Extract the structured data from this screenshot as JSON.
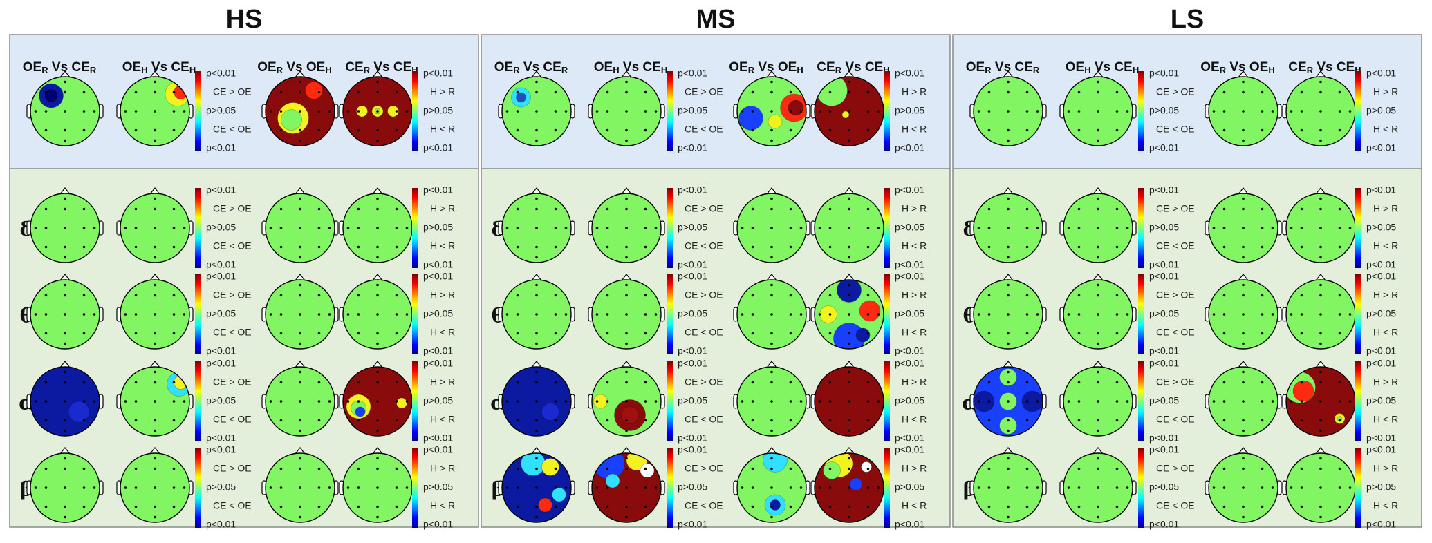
{
  "groups": [
    {
      "title": "HS"
    },
    {
      "title": "MS"
    },
    {
      "title": "LS"
    }
  ],
  "columns": [
    [
      "OE",
      "R",
      " Vs CE",
      "R"
    ],
    [
      "OE",
      "H",
      " Vs CE",
      "H"
    ],
    [
      "OE",
      "R",
      " Vs OE",
      "H"
    ],
    [
      "CE",
      "R",
      " Vs CE",
      "H"
    ]
  ],
  "bands": [
    "δ",
    "θ",
    "α",
    "β"
  ],
  "scale_left": [
    "p<0.01",
    "CE > OE",
    "p>0.05",
    "CE < OE",
    "p<0.01"
  ],
  "scale_right": [
    "p<0.01",
    "H > R",
    "p>0.05",
    "H < R",
    "p<0.01"
  ]
}
